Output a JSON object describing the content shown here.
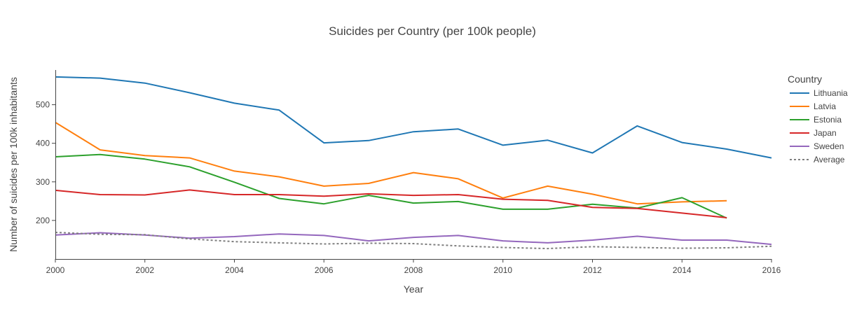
{
  "chart_data": {
    "type": "line",
    "title": "Suicides per Country (per 100k people)",
    "xlabel": "Year",
    "ylabel": "Number of suicides per 100k inhabitants",
    "xlim": [
      2000,
      2016
    ],
    "ylim": [
      100,
      590
    ],
    "x_ticks": [
      2000,
      2002,
      2004,
      2006,
      2008,
      2010,
      2012,
      2014,
      2016
    ],
    "y_ticks": [
      200,
      300,
      400,
      500
    ],
    "legend": {
      "title": "Country",
      "position": "right"
    },
    "grid": false,
    "series": [
      {
        "name": "Lithuania",
        "color": "#1f77b4",
        "dash": "solid",
        "x": [
          2000,
          2001,
          2002,
          2003,
          2004,
          2005,
          2006,
          2007,
          2008,
          2009,
          2010,
          2011,
          2012,
          2013,
          2014,
          2015,
          2016
        ],
        "y": [
          572,
          569,
          556,
          531,
          504,
          486,
          401,
          407,
          430,
          437,
          395,
          408,
          375,
          445,
          402,
          385,
          362
        ]
      },
      {
        "name": "Latvia",
        "color": "#ff7f0e",
        "dash": "solid",
        "x": [
          2000,
          2001,
          2002,
          2003,
          2004,
          2005,
          2006,
          2007,
          2008,
          2009,
          2010,
          2011,
          2012,
          2013,
          2014,
          2015
        ],
        "y": [
          454,
          383,
          368,
          362,
          328,
          313,
          289,
          296,
          324,
          308,
          258,
          289,
          268,
          243,
          248,
          251
        ]
      },
      {
        "name": "Estonia",
        "color": "#2ca02c",
        "dash": "solid",
        "x": [
          2000,
          2001,
          2002,
          2003,
          2004,
          2005,
          2006,
          2007,
          2008,
          2009,
          2010,
          2011,
          2012,
          2013,
          2014,
          2015
        ],
        "y": [
          365,
          371,
          359,
          339,
          299,
          257,
          243,
          265,
          245,
          249,
          229,
          229,
          242,
          232,
          259,
          206
        ]
      },
      {
        "name": "Japan",
        "color": "#d62728",
        "dash": "solid",
        "x": [
          2000,
          2001,
          2002,
          2003,
          2004,
          2005,
          2006,
          2007,
          2008,
          2009,
          2010,
          2011,
          2012,
          2013,
          2014,
          2015
        ],
        "y": [
          278,
          267,
          266,
          279,
          267,
          267,
          263,
          269,
          265,
          267,
          255,
          252,
          234,
          231,
          219,
          207
        ]
      },
      {
        "name": "Sweden",
        "color": "#9467bd",
        "dash": "solid",
        "x": [
          2000,
          2001,
          2002,
          2003,
          2004,
          2005,
          2006,
          2007,
          2008,
          2009,
          2010,
          2011,
          2012,
          2013,
          2014,
          2015,
          2016
        ],
        "y": [
          162,
          168,
          162,
          154,
          158,
          165,
          161,
          147,
          156,
          161,
          147,
          142,
          149,
          159,
          149,
          149,
          138
        ]
      },
      {
        "name": "Average",
        "color": "#7f7f7f",
        "dash": "dot",
        "x": [
          2000,
          2001,
          2002,
          2003,
          2004,
          2005,
          2006,
          2007,
          2008,
          2009,
          2010,
          2011,
          2012,
          2013,
          2014,
          2015,
          2016
        ],
        "y": [
          169,
          164,
          163,
          152,
          145,
          142,
          139,
          141,
          140,
          134,
          130,
          127,
          132,
          130,
          128,
          129,
          133
        ]
      }
    ]
  }
}
